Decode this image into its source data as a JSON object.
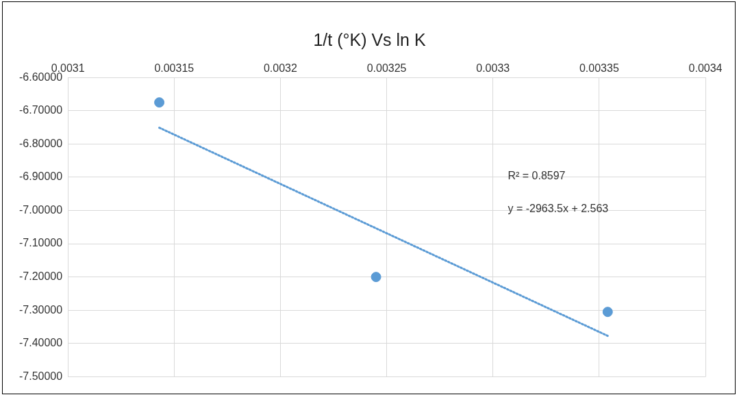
{
  "chart_data": {
    "type": "scatter",
    "title": "1/t (°K) Vs ln K",
    "series": [
      {
        "color": "#5b9bd5",
        "x": [
          0.003143,
          0.003245,
          0.003354
        ],
        "values": [
          -6.675,
          -7.2,
          -7.305
        ],
        "marker": "circle"
      },
      {
        "type": "line",
        "color": "#5b9bd5",
        "x": [
          0.003143,
          0.003354
        ],
        "values": [
          -6.751,
          -7.377
        ],
        "line_style": "dotted",
        "marker": "none"
      }
    ],
    "xlim": [
      0.0031,
      0.0034
    ],
    "xticks": [
      0.0031,
      0.00315,
      0.0032,
      0.00325,
      0.0033,
      0.00335,
      0.0034
    ],
    "ylim": [
      -7.5,
      -6.6
    ],
    "yticks": [
      {
        "value": -7.5,
        "label": "-7.50000"
      },
      {
        "value": -7.4,
        "label": "-7.40000"
      },
      {
        "value": -7.3,
        "label": "-7.30000"
      },
      {
        "value": -7.2,
        "label": "-7.20000"
      },
      {
        "value": -7.1,
        "label": "-7.10000"
      },
      {
        "value": -7.0,
        "label": "-7.00000"
      },
      {
        "value": -6.9,
        "label": "-6.90000"
      },
      {
        "value": -6.8,
        "label": "-6.80000"
      },
      {
        "value": -6.7,
        "label": "-6.70000"
      },
      {
        "value": -6.6,
        "label": "-6.60000"
      }
    ],
    "grid": true,
    "legend": false,
    "annotations": [
      "R² = 0.8597",
      "y = -2963.5x + 2.563"
    ]
  }
}
